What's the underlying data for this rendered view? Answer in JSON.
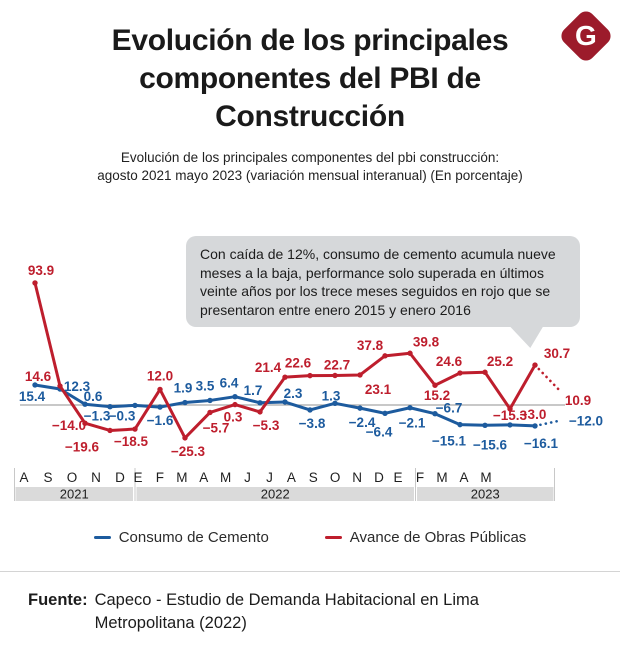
{
  "header": {
    "title": "Evolución de los principales\ncomponentes del PBI de\nConstrucción",
    "subtitle": "Evolución de los principales componentes del pbi construcción:\nagosto 2021 mayo 2023 (variación mensual interanual) (En porcentaje)",
    "logo_letter": "G",
    "logo_color": "#9c1b2b"
  },
  "annotation": {
    "text": "Con caída de 12%, consumo de cemento acumula nueve meses a la baja, performance solo superada en últimos veinte años por los trece meses seguidos en rojo que se presentaron entre enero 2015 y enero 2016"
  },
  "chart_data": {
    "type": "line",
    "x_labels": [
      "A",
      "S",
      "O",
      "N",
      "D",
      "E",
      "F",
      "M",
      "A",
      "M",
      "J",
      "J",
      "A",
      "S",
      "O",
      "N",
      "D",
      "E",
      "F",
      "M",
      "A",
      "M"
    ],
    "year_bands": [
      {
        "label": "2021",
        "start": 0,
        "end": 4
      },
      {
        "label": "2022",
        "start": 5,
        "end": 16
      },
      {
        "label": "2023",
        "start": 17,
        "end": 21
      }
    ],
    "ylim": [
      -30,
      100
    ],
    "grid": false,
    "zero_line": true,
    "legend_position": "bottom",
    "last_point_projection_dotted": true,
    "series": [
      {
        "name": "Consumo de Cemento",
        "color": "#1d5b9e",
        "values": [
          15.4,
          12.3,
          0.6,
          -1.3,
          -0.3,
          -1.6,
          1.9,
          3.5,
          6.4,
          1.7,
          2.3,
          -3.8,
          1.3,
          -2.4,
          -6.4,
          -2.1,
          -6.7,
          -15.1,
          -15.6,
          -15.3,
          -16.1,
          -12.0
        ],
        "label_offsets": [
          [
            -3,
            16
          ],
          [
            17,
            2
          ],
          [
            8,
            -3
          ],
          [
            -13,
            14
          ],
          [
            -13,
            15
          ],
          [
            0,
            18
          ],
          [
            -2,
            -10
          ],
          [
            -5,
            -10
          ],
          [
            -6,
            -9
          ],
          [
            -7,
            -8
          ],
          [
            8,
            -4
          ],
          [
            2,
            18
          ],
          [
            -4,
            -3
          ],
          [
            2,
            19
          ],
          [
            -6,
            23
          ],
          [
            2,
            20
          ],
          [
            14,
            -1
          ],
          [
            -11,
            21
          ],
          [
            5,
            24
          ],
          [
            0,
            -5
          ],
          [
            6,
            22
          ],
          [
            26,
            5
          ]
        ],
        "label_color_overrides": {
          "19": "#be1e2d"
        }
      },
      {
        "name": "Avance de Obras Públicas",
        "color": "#be1e2d",
        "values": [
          93.9,
          14.6,
          -14.0,
          -19.6,
          -18.5,
          12.0,
          -25.3,
          -5.7,
          0.3,
          -5.3,
          21.4,
          22.6,
          22.7,
          23.1,
          37.8,
          39.8,
          15.2,
          24.6,
          25.2,
          -3.0,
          30.7,
          10.9
        ],
        "label_offsets": [
          [
            6,
            -8
          ],
          [
            -22,
            -5
          ],
          [
            -16,
            7
          ],
          [
            -28,
            21
          ],
          [
            -4,
            17
          ],
          [
            0,
            -9
          ],
          [
            3,
            18
          ],
          [
            6,
            20
          ],
          [
            -2,
            17
          ],
          [
            6,
            18
          ],
          [
            -17,
            -5
          ],
          [
            -12,
            -8
          ],
          [
            2,
            -6
          ],
          [
            18,
            19
          ],
          [
            -15,
            -6
          ],
          [
            16,
            -7
          ],
          [
            2,
            15
          ],
          [
            -11,
            -7
          ],
          [
            15,
            -6
          ],
          [
            23,
            10
          ],
          [
            22,
            -7
          ],
          [
            18,
            14
          ]
        ],
        "label_color_overrides": {}
      }
    ]
  },
  "footer": {
    "source_label": "Fuente:",
    "source_text": "Capeco - Estudio de Demanda Habitacional en Lima Metropolitana (2022)"
  }
}
